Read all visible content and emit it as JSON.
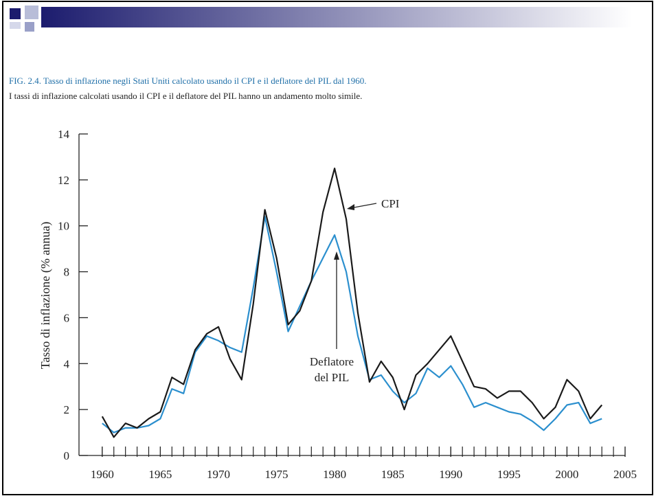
{
  "chart_data": {
    "type": "line",
    "title": "FIG. 2.4. Tasso di inflazione negli Stati Uniti calcolato usando il CPI e il deflatore del PIL dal 1960.",
    "subtitle": "I tassi di inflazione calcolati usando il CPI e il deflatore del PIL hanno un andamento molto simile.",
    "ylabel": "Tasso di inflazione (% annua)",
    "x": [
      1960,
      1961,
      1962,
      1963,
      1964,
      1965,
      1966,
      1967,
      1968,
      1969,
      1970,
      1971,
      1972,
      1973,
      1974,
      1975,
      1976,
      1977,
      1978,
      1979,
      1980,
      1981,
      1982,
      1983,
      1984,
      1985,
      1986,
      1987,
      1988,
      1989,
      1990,
      1991,
      1992,
      1993,
      1994,
      1995,
      1996,
      1997,
      1998,
      1999,
      2000,
      2001,
      2002,
      2003
    ],
    "series": [
      {
        "name": "CPI",
        "color": "#1a1a1a",
        "values": [
          1.7,
          0.8,
          1.4,
          1.2,
          1.6,
          1.9,
          3.4,
          3.1,
          4.6,
          5.3,
          5.6,
          4.2,
          3.3,
          6.6,
          10.7,
          8.6,
          5.7,
          6.3,
          7.6,
          10.6,
          12.5,
          10.3,
          6.2,
          3.2,
          4.1,
          3.4,
          2.0,
          3.5,
          4.0,
          4.6,
          5.2,
          4.1,
          3.0,
          2.9,
          2.5,
          2.8,
          2.8,
          2.3,
          1.6,
          2.1,
          3.3,
          2.8,
          1.6,
          2.2
        ]
      },
      {
        "name": "Deflatore del PIL",
        "color": "#2b8fce",
        "values": [
          1.4,
          1.0,
          1.2,
          1.2,
          1.3,
          1.6,
          2.9,
          2.7,
          4.5,
          5.2,
          5.0,
          4.7,
          4.5,
          7.3,
          10.4,
          8.0,
          5.4,
          6.5,
          7.6,
          8.6,
          9.6,
          8.0,
          5.2,
          3.3,
          3.5,
          2.8,
          2.3,
          2.7,
          3.8,
          3.4,
          3.9,
          3.1,
          2.1,
          2.3,
          2.1,
          1.9,
          1.8,
          1.5,
          1.1,
          1.6,
          2.2,
          2.3,
          1.4,
          1.6
        ]
      }
    ],
    "xlim": [
      1958,
      2005
    ],
    "xticks": [
      1960,
      1965,
      1970,
      1975,
      1980,
      1985,
      1990,
      1995,
      2000,
      2005
    ],
    "xtick_step": 1,
    "ylim": [
      0,
      14
    ],
    "yticks": [
      0,
      2,
      4,
      6,
      8,
      10,
      12,
      14
    ]
  }
}
